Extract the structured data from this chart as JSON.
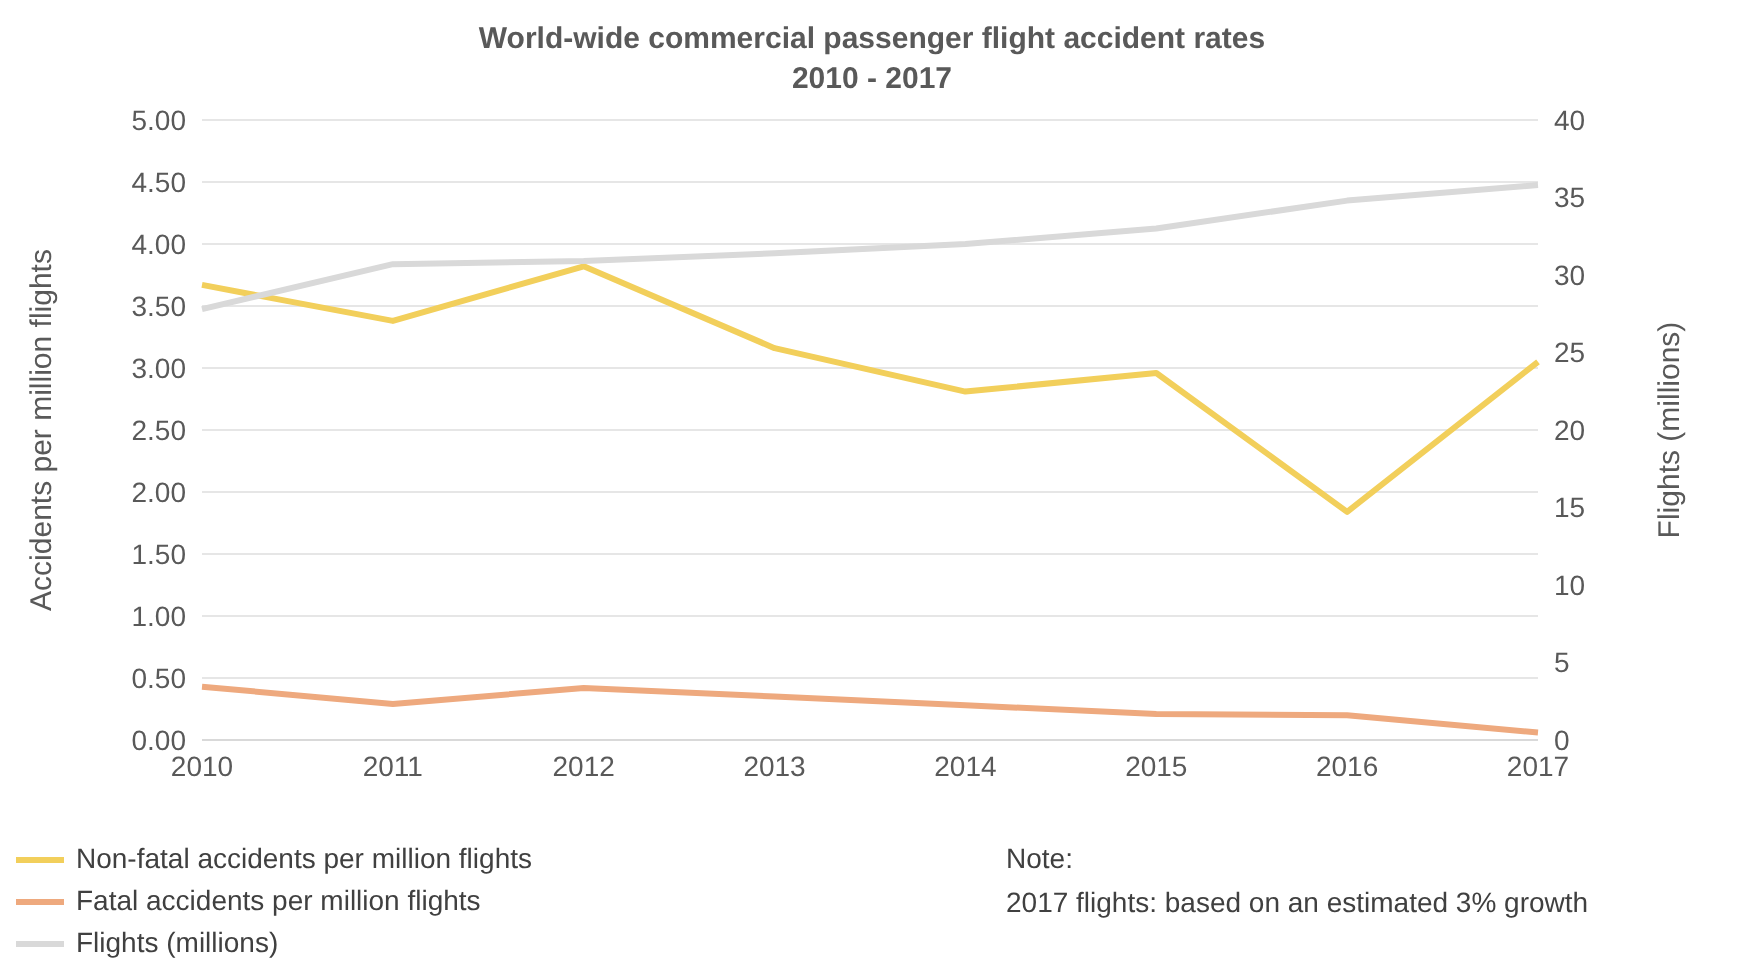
{
  "chart_data": {
    "type": "line",
    "title": "World-wide commercial passenger flight accident rates",
    "subtitle": "2010 - 2017",
    "categories": [
      "2010",
      "2011",
      "2012",
      "2013",
      "2014",
      "2015",
      "2016",
      "2017"
    ],
    "series": [
      {
        "name": "Non-fatal accidents per million flights",
        "color": "#f2cf5b",
        "values": [
          3.67,
          3.38,
          3.82,
          3.16,
          2.81,
          2.96,
          1.84,
          3.05
        ]
      },
      {
        "name": "Fatal accidents per million flights",
        "color": "#eea97e",
        "values": [
          0.43,
          0.29,
          0.42,
          0.35,
          0.28,
          0.21,
          0.2,
          0.06
        ]
      },
      {
        "name": "Flights (millions)",
        "color": "#d9d9d9",
        "axis": "y2",
        "values": [
          27.8,
          30.7,
          30.9,
          31.4,
          32.0,
          33.0,
          34.8,
          35.8
        ]
      }
    ],
    "ylabel": "Accidents per million flights",
    "y2label": "Flights (millions)",
    "ylim": [
      0,
      5
    ],
    "yticks": [
      {
        "value": 0,
        "label": "0.00"
      },
      {
        "value": 0.5,
        "label": "0.50"
      },
      {
        "value": 1,
        "label": "1.00"
      },
      {
        "value": 1.5,
        "label": "1.50"
      },
      {
        "value": 2,
        "label": "2.00"
      },
      {
        "value": 2.5,
        "label": "2.50"
      },
      {
        "value": 3,
        "label": "3.00"
      },
      {
        "value": 3.5,
        "label": "3.50"
      },
      {
        "value": 4,
        "label": "4.00"
      },
      {
        "value": 4.5,
        "label": "4.50"
      },
      {
        "value": 5,
        "label": "5.00"
      }
    ],
    "y2lim": [
      0,
      40
    ],
    "y2ticks": [
      0,
      5,
      10,
      15,
      20,
      25,
      30,
      35,
      40
    ],
    "grid": "y",
    "legend": "bottom left",
    "marker": "none",
    "line_style": "solid",
    "annotations": [
      "Note:",
      "2017 flights: based on an estimated 3% growth"
    ]
  }
}
